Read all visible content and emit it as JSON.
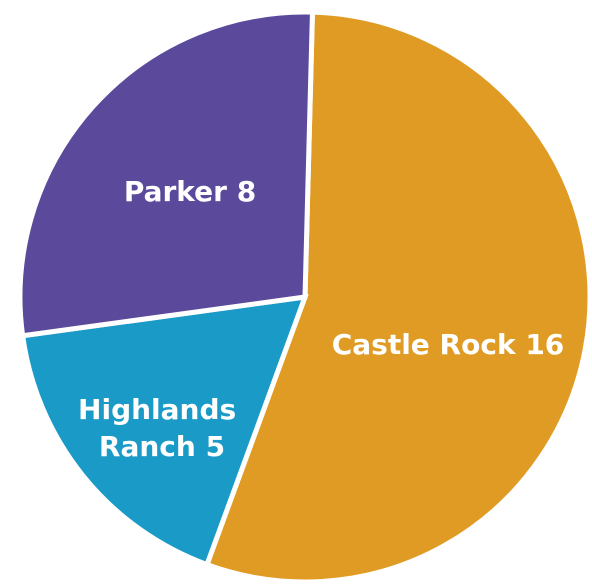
{
  "chart_data": {
    "type": "pie",
    "title": "",
    "legend": "none",
    "slices": [
      {
        "label": "Castle Rock 16",
        "category": "Castle Rock",
        "value": 16,
        "color": "#E09B24"
      },
      {
        "label": "Highlands Ranch 5",
        "category": "Highlands Ranch",
        "value": 5,
        "color": "#1A9AC6"
      },
      {
        "label": "Parker 8",
        "category": "Parker",
        "value": 8,
        "color": "#5B4A9B"
      }
    ]
  }
}
